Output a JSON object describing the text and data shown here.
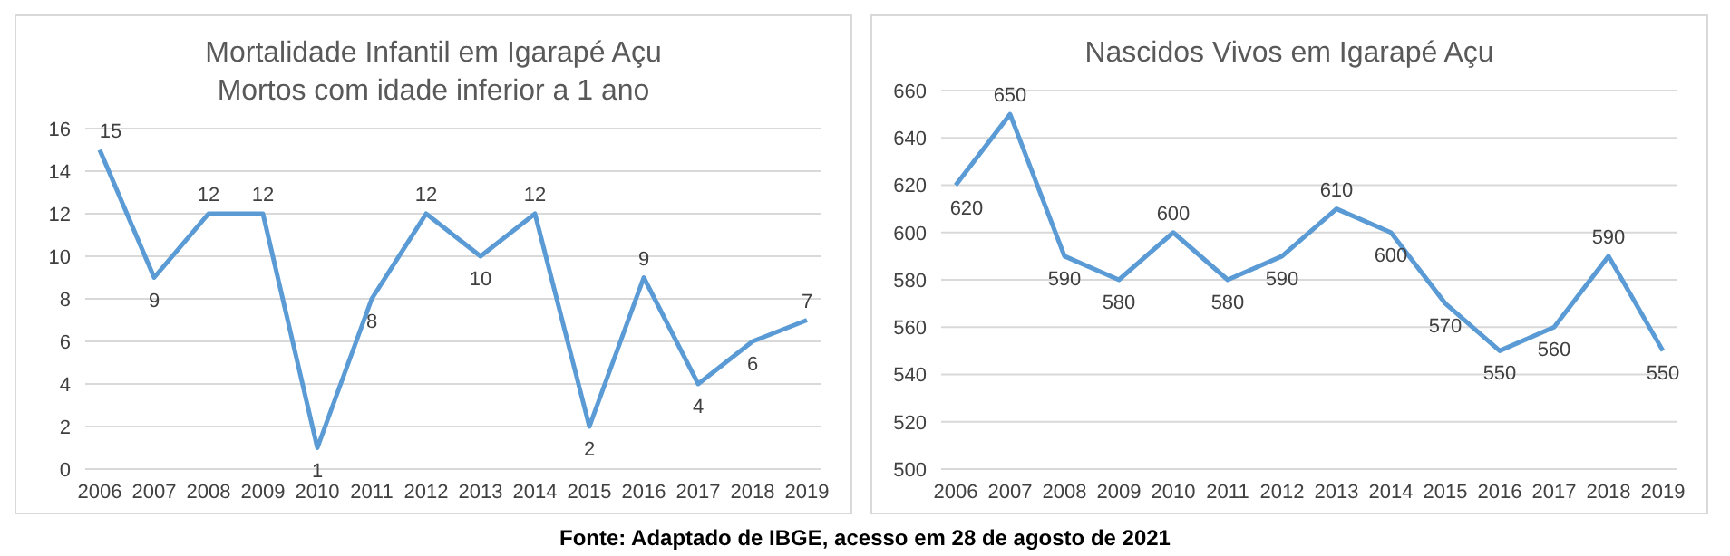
{
  "chart_data": [
    {
      "type": "line",
      "title": "Mortalidade Infantil em Igarapé Açu",
      "subtitle": "Mortos com idade inferior a 1 ano",
      "categories": [
        "2006",
        "2007",
        "2008",
        "2009",
        "2010",
        "2011",
        "2012",
        "2013",
        "2014",
        "2015",
        "2016",
        "2017",
        "2018",
        "2019"
      ],
      "series": [
        {
          "color": "#5b9bd5",
          "values": [
            15,
            9,
            12,
            12,
            1,
            8,
            12,
            10,
            12,
            2,
            9,
            4,
            6,
            7
          ]
        }
      ],
      "ylim": [
        0,
        16
      ],
      "yticks": [
        0,
        2,
        4,
        6,
        8,
        10,
        12,
        14,
        16
      ],
      "grid": "y",
      "marker": "none",
      "data_labels": true
    },
    {
      "type": "line",
      "title": "Nascidos Vivos em Igarapé Açu",
      "categories": [
        "2006",
        "2007",
        "2008",
        "2009",
        "2010",
        "2011",
        "2012",
        "2013",
        "2014",
        "2015",
        "2016",
        "2017",
        "2018",
        "2019"
      ],
      "series": [
        {
          "color": "#5b9bd5",
          "values": [
            620,
            650,
            590,
            580,
            600,
            580,
            590,
            610,
            600,
            570,
            550,
            560,
            590,
            550
          ]
        }
      ],
      "ylim": [
        500,
        660
      ],
      "yticks": [
        500,
        520,
        540,
        560,
        580,
        600,
        620,
        640,
        660
      ],
      "grid": "y",
      "marker": "none",
      "data_labels": true,
      "annotations": [
        "Fonte: Adaptado de IBGE, acesso em 28 de agosto de 2021"
      ]
    }
  ]
}
